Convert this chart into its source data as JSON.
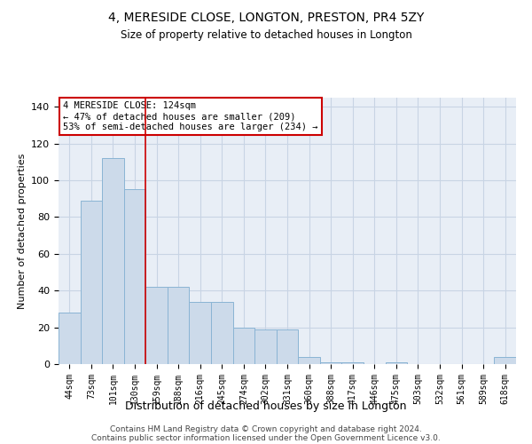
{
  "title": "4, MERESIDE CLOSE, LONGTON, PRESTON, PR4 5ZY",
  "subtitle": "Size of property relative to detached houses in Longton",
  "xlabel": "Distribution of detached houses by size in Longton",
  "ylabel": "Number of detached properties",
  "footer_line1": "Contains HM Land Registry data © Crown copyright and database right 2024.",
  "footer_line2": "Contains public sector information licensed under the Open Government Licence v3.0.",
  "bin_labels": [
    "44sqm",
    "73sqm",
    "101sqm",
    "130sqm",
    "159sqm",
    "188sqm",
    "216sqm",
    "245sqm",
    "274sqm",
    "302sqm",
    "331sqm",
    "360sqm",
    "388sqm",
    "417sqm",
    "446sqm",
    "475sqm",
    "503sqm",
    "532sqm",
    "561sqm",
    "589sqm",
    "618sqm"
  ],
  "bar_heights": [
    28,
    89,
    112,
    95,
    42,
    42,
    34,
    34,
    20,
    19,
    19,
    4,
    1,
    1,
    0,
    1,
    0,
    0,
    0,
    0,
    4
  ],
  "bar_color": "#ccdaea",
  "bar_edgecolor": "#8ab4d4",
  "grid_color": "#c8d4e4",
  "background_color": "#e8eef6",
  "vline_x_index": 3,
  "vline_color": "#cc0000",
  "annotation_text": "4 MERESIDE CLOSE: 124sqm\n← 47% of detached houses are smaller (209)\n53% of semi-detached houses are larger (234) →",
  "annotation_box_edgecolor": "#cc0000",
  "ylim": [
    0,
    145
  ],
  "yticks": [
    0,
    20,
    40,
    60,
    80,
    100,
    120,
    140
  ]
}
